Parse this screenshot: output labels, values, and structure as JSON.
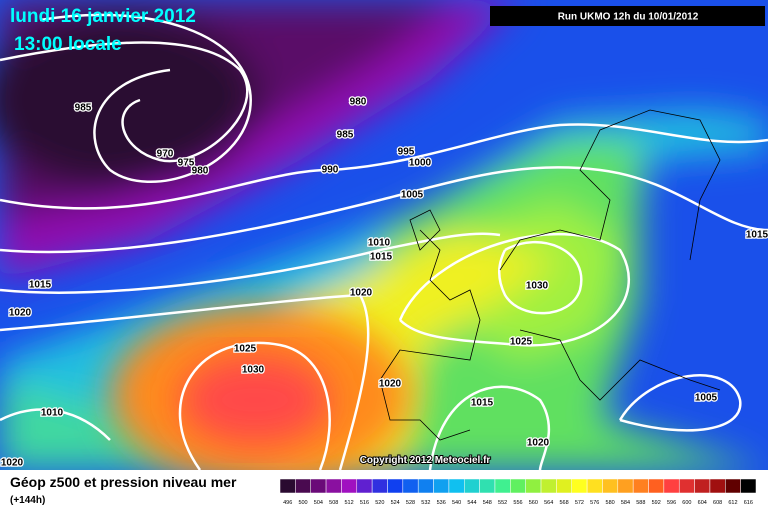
{
  "header": {
    "title": "lundi 16 janvier 2012",
    "subtitle": "13:00 locale",
    "run": "Run UKMO 12h du 10/01/2012"
  },
  "isobar_labels": [
    "985",
    "980",
    "985",
    "970",
    "975",
    "980",
    "990",
    "995",
    "1000",
    "1005",
    "1010",
    "1015",
    "1015",
    "1020",
    "1020",
    "1030",
    "1015",
    "1025",
    "1030",
    "1025",
    "1020",
    "1015",
    "1005",
    "1010",
    "1020",
    "1020"
  ],
  "copyright": "Copyright 2012 Meteociel.fr",
  "legend": {
    "title": "Géop z500 et pression niveau mer",
    "subtitle": "(+144h)",
    "values": [
      496,
      500,
      504,
      508,
      512,
      516,
      520,
      524,
      528,
      532,
      536,
      540,
      544,
      548,
      552,
      556,
      560,
      564,
      568,
      572,
      576,
      580,
      584,
      588,
      592,
      596,
      600,
      604,
      608,
      612,
      616
    ],
    "colors": [
      "#2a0a30",
      "#4a0a50",
      "#6a0a78",
      "#8a10a0",
      "#a010c0",
      "#6020d0",
      "#3030e0",
      "#1040f0",
      "#1060f0",
      "#1080f0",
      "#10a0f0",
      "#10c0f0",
      "#20d0d0",
      "#30e0b0",
      "#40f090",
      "#60f060",
      "#90f040",
      "#c0f030",
      "#e0f020",
      "#ffff20",
      "#ffe020",
      "#ffc020",
      "#ffa020",
      "#ff8020",
      "#ff6020",
      "#ff4040",
      "#e03030",
      "#c02020",
      "#a01010",
      "#600000",
      "#000000"
    ]
  }
}
